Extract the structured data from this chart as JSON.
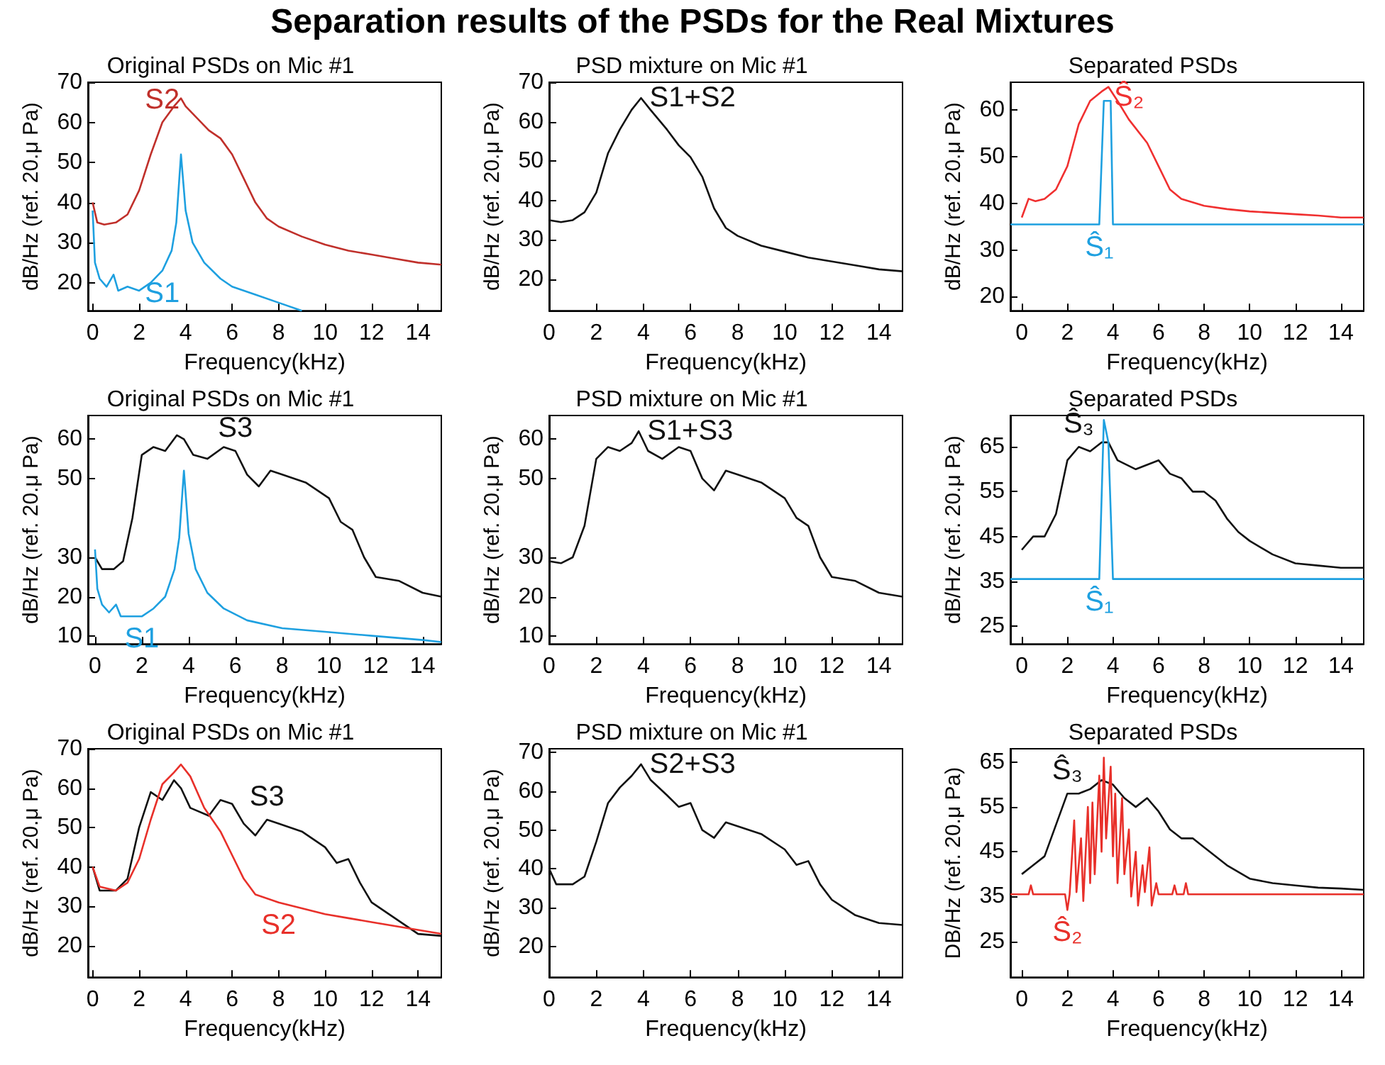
{
  "chart_data": [
    {
      "type": "line",
      "title": "Original PSDs on Mic #1",
      "xlabel": "Frequency(kHz)",
      "ylabel": "dB/Hz (ref. 20.μ Pa)",
      "annotations": [
        "Separation results of the PSDs for the Real Mixtures"
      ],
      "xlim": [
        -0.2,
        15
      ],
      "xticks": [
        0,
        2,
        4,
        6,
        8,
        10,
        12,
        14
      ],
      "ylim": [
        13,
        70
      ],
      "yticks": [
        20,
        30,
        40,
        50,
        60,
        70
      ],
      "series": [
        {
          "name": "S2",
          "color": "#c0302b",
          "x": [
            0,
            0.2,
            0.5,
            1,
            1.5,
            2,
            2.5,
            3,
            3.5,
            3.8,
            4,
            4.5,
            5,
            5.5,
            6,
            6.5,
            7,
            7.5,
            8,
            9,
            10,
            11,
            12,
            13,
            14,
            15
          ],
          "values": [
            40,
            35,
            34.5,
            35,
            37,
            43,
            52,
            60,
            64,
            66,
            64,
            61,
            58,
            56,
            52,
            46,
            40,
            36,
            34,
            31.5,
            29.5,
            28,
            27,
            26,
            25,
            24.5
          ]
        },
        {
          "name": "S1",
          "color": "#1ea0e0",
          "x": [
            0,
            0.1,
            0.3,
            0.6,
            0.9,
            1.1,
            1.5,
            2,
            2.5,
            3,
            3.4,
            3.6,
            3.8,
            4,
            4.3,
            4.8,
            5.5,
            6,
            7,
            8,
            9
          ],
          "values": [
            38,
            25,
            21,
            19,
            22,
            18,
            19,
            18,
            20,
            23,
            28,
            35,
            52,
            38,
            30,
            25,
            21,
            19,
            17,
            15,
            13
          ]
        }
      ]
    },
    {
      "type": "line",
      "title": "PSD mixture on Mic #1",
      "xlabel": "Frequency(kHz)",
      "ylabel": "dB/Hz (ref. 20.μ Pa)",
      "xlim": [
        0,
        15
      ],
      "xticks": [
        0,
        2,
        4,
        6,
        8,
        10,
        12,
        14
      ],
      "ylim": [
        12,
        70
      ],
      "yticks": [
        20,
        30,
        40,
        50,
        60,
        70
      ],
      "series": [
        {
          "name": "S1+S2",
          "color": "#111111",
          "x": [
            0,
            0.5,
            1,
            1.5,
            2,
            2.5,
            3,
            3.5,
            3.9,
            4.3,
            5,
            5.5,
            6,
            6.5,
            7,
            7.5,
            8,
            9,
            10,
            11,
            12,
            13,
            14,
            15
          ],
          "values": [
            35,
            34.5,
            35,
            37,
            42,
            52,
            58,
            63,
            66,
            63,
            58,
            54,
            51,
            46,
            38,
            33,
            31,
            28.5,
            27,
            25.5,
            24.5,
            23.5,
            22.5,
            22
          ]
        }
      ]
    },
    {
      "type": "line",
      "title": "Separated PSDs",
      "xlabel": "Frequency(kHz)",
      "ylabel": "dB/Hz (ref. 20.μ Pa)",
      "xlim": [
        -0.5,
        15
      ],
      "xticks": [
        0,
        2,
        4,
        6,
        8,
        10,
        12,
        14
      ],
      "ylim": [
        17,
        66
      ],
      "yticks": [
        20,
        30,
        40,
        50,
        60
      ],
      "series": [
        {
          "name": "Ŝ₂",
          "color": "#f03030",
          "x": [
            0,
            0.3,
            0.6,
            1,
            1.5,
            2,
            2.5,
            3,
            3.5,
            3.8,
            4.2,
            4.7,
            5.5,
            6,
            6.5,
            7,
            8,
            9,
            10,
            11,
            12,
            13,
            14,
            15
          ],
          "values": [
            37,
            41,
            40.5,
            41,
            43,
            48,
            57,
            62,
            64,
            65,
            62,
            58,
            53,
            48,
            43,
            41,
            39.5,
            38.8,
            38.3,
            38,
            37.7,
            37.4,
            37,
            37
          ]
        },
        {
          "name": "Ŝ₁",
          "color": "#1ea0e0",
          "x": [
            -0.5,
            3.4,
            3.6,
            3.9,
            4,
            15
          ],
          "values": [
            35.5,
            35.5,
            62,
            62,
            35.5,
            35.5
          ]
        }
      ]
    },
    {
      "type": "line",
      "title": "Original PSDs on Mic #1",
      "xlabel": "Frequency(kHz)",
      "ylabel": "dB/Hz (ref. 20.μ Pa)",
      "xlim": [
        -0.3,
        14.8
      ],
      "xticks": [
        0,
        2,
        4,
        6,
        8,
        10,
        12,
        14
      ],
      "ylim": [
        8,
        66
      ],
      "yticks": [
        10,
        20,
        30,
        50,
        60
      ],
      "series": [
        {
          "name": "S3",
          "color": "#111111",
          "x": [
            0,
            0.3,
            0.8,
            1.2,
            1.6,
            2,
            2.5,
            3,
            3.5,
            3.8,
            4.2,
            4.8,
            5.5,
            6,
            6.5,
            7,
            7.5,
            8,
            9,
            10,
            10.5,
            11,
            11.5,
            12,
            13,
            14,
            14.8
          ],
          "values": [
            30,
            27,
            27,
            29,
            40,
            56,
            58,
            57,
            61,
            60,
            56,
            55,
            58,
            57,
            51,
            48,
            52,
            51,
            49,
            45,
            39,
            37,
            30,
            25,
            24,
            21,
            20
          ]
        },
        {
          "name": "S1",
          "color": "#1ea0e0",
          "x": [
            0,
            0.1,
            0.3,
            0.6,
            0.9,
            1.1,
            1.5,
            2,
            2.5,
            3,
            3.4,
            3.6,
            3.8,
            4,
            4.3,
            4.8,
            5.5,
            6.5,
            8,
            10,
            12,
            14,
            14.8
          ],
          "values": [
            32,
            22,
            18,
            16,
            18,
            15,
            15,
            15,
            17,
            20,
            27,
            35,
            52,
            36,
            27,
            21,
            17,
            14,
            12,
            11,
            10,
            9,
            8.5
          ]
        }
      ]
    },
    {
      "type": "line",
      "title": "PSD mixture on Mic #1",
      "xlabel": "Frequency(kHz)",
      "ylabel": "dB/Hz (ref. 20.μ Pa)",
      "xlim": [
        0,
        15
      ],
      "xticks": [
        0,
        2,
        4,
        6,
        8,
        10,
        12,
        14
      ],
      "ylim": [
        8,
        66
      ],
      "yticks": [
        10,
        20,
        30,
        50,
        60
      ],
      "series": [
        {
          "name": "S1+S3",
          "color": "#111111",
          "x": [
            0,
            0.5,
            1,
            1.5,
            2,
            2.5,
            3,
            3.5,
            3.8,
            4.2,
            4.8,
            5.5,
            6,
            6.5,
            7,
            7.5,
            8,
            9,
            10,
            10.5,
            11,
            11.5,
            12,
            13,
            14,
            15
          ],
          "values": [
            29,
            28.5,
            30,
            38,
            55,
            58,
            57,
            59,
            62,
            57,
            55,
            58,
            57,
            50,
            47,
            52,
            51,
            49,
            45,
            40,
            38,
            30,
            25,
            24,
            21,
            20
          ]
        }
      ]
    },
    {
      "type": "line",
      "title": "Separated PSDs",
      "xlabel": "Frequency(kHz)",
      "ylabel": "dB/Hz (ref. 20.μ Pa)",
      "xlim": [
        -0.5,
        15
      ],
      "xticks": [
        0,
        2,
        4,
        6,
        8,
        10,
        12,
        14
      ],
      "ylim": [
        21,
        72
      ],
      "yticks": [
        25,
        35,
        45,
        55,
        65
      ],
      "series": [
        {
          "name": "Ŝ₃",
          "color": "#111111",
          "x": [
            0,
            0.5,
            1,
            1.5,
            2,
            2.5,
            3,
            3.5,
            3.8,
            4.2,
            5,
            5.5,
            6,
            6.5,
            7,
            7.5,
            8,
            8.5,
            9,
            9.5,
            10,
            11,
            12,
            13,
            14,
            15
          ],
          "values": [
            42,
            45,
            45,
            50,
            62,
            65,
            64,
            66,
            66,
            62,
            60,
            61,
            62,
            59,
            58,
            55,
            55,
            53,
            49,
            46,
            44,
            41,
            39,
            38.5,
            38,
            38
          ]
        },
        {
          "name": "Ŝ₁",
          "color": "#1ea0e0",
          "x": [
            -0.5,
            3.4,
            3.6,
            3.8,
            4,
            15
          ],
          "values": [
            35.5,
            35.5,
            71,
            66,
            35.5,
            35.5
          ]
        }
      ]
    },
    {
      "type": "line",
      "title": "Original PSDs on Mic #1",
      "xlabel": "Frequency(kHz)",
      "ylabel": "dB/Hz (ref. 20.μ Pa)",
      "xlim": [
        -0.2,
        15
      ],
      "xticks": [
        0,
        2,
        4,
        6,
        8,
        10,
        12,
        14
      ],
      "ylim": [
        12,
        70
      ],
      "yticks": [
        20,
        30,
        40,
        50,
        60,
        70
      ],
      "series": [
        {
          "name": "S3",
          "color": "#111111",
          "x": [
            0,
            0.3,
            1,
            1.5,
            2,
            2.5,
            3,
            3.5,
            3.8,
            4.2,
            5,
            5.5,
            6,
            6.5,
            7,
            7.5,
            8,
            9,
            10,
            10.5,
            11,
            11.5,
            12,
            13,
            14,
            15
          ],
          "values": [
            40,
            34,
            34,
            37,
            50,
            59,
            57,
            62,
            60,
            55,
            53,
            57,
            56,
            51,
            48,
            52,
            51,
            49,
            45,
            41,
            42,
            36,
            31,
            27,
            23,
            22.5
          ]
        },
        {
          "name": "S2",
          "color": "#e8302a",
          "x": [
            0,
            0.3,
            1,
            1.5,
            2,
            2.5,
            3,
            3.5,
            3.8,
            4.2,
            4.8,
            5.5,
            6,
            6.5,
            7,
            8,
            9,
            10,
            11,
            12,
            13,
            14,
            15
          ],
          "values": [
            40,
            35,
            34,
            36,
            42,
            52,
            61,
            64,
            66,
            63,
            55,
            49,
            43,
            37,
            33,
            31,
            29.5,
            28,
            27,
            26,
            25,
            24,
            23
          ]
        }
      ]
    },
    {
      "type": "line",
      "title": "PSD mixture on Mic #1",
      "xlabel": "Frequency(kHz)",
      "ylabel": "dB/Hz (ref. 20.μ Pa)",
      "xlim": [
        0,
        15
      ],
      "xticks": [
        0,
        2,
        4,
        6,
        8,
        10,
        12,
        14
      ],
      "ylim": [
        12,
        71
      ],
      "yticks": [
        20,
        30,
        40,
        50,
        60,
        70
      ],
      "series": [
        {
          "name": "S2+S3",
          "color": "#111111",
          "x": [
            0,
            0.3,
            1,
            1.5,
            2,
            2.5,
            3,
            3.5,
            3.9,
            4.3,
            5,
            5.5,
            6,
            6.5,
            7,
            7.5,
            8,
            9,
            10,
            10.5,
            11,
            11.5,
            12,
            13,
            14,
            15
          ],
          "values": [
            40,
            36,
            36,
            38,
            47,
            57,
            61,
            64,
            67,
            63,
            59,
            56,
            57,
            50,
            48,
            52,
            51,
            49,
            45,
            41,
            42,
            36,
            32,
            28,
            26,
            25.5
          ]
        }
      ]
    },
    {
      "type": "line",
      "title": "Separated PSDs",
      "xlabel": "Frequency(kHz)",
      "ylabel": "DB/Hz (ref. 20.μ Pa)",
      "xlim": [
        -0.5,
        15
      ],
      "xticks": [
        0,
        2,
        4,
        6,
        8,
        10,
        12,
        14
      ],
      "ylim": [
        17,
        68
      ],
      "yticks": [
        25,
        35,
        45,
        55,
        65
      ],
      "series": [
        {
          "name": "Ŝ₃",
          "color": "#111111",
          "x": [
            0,
            0.5,
            1,
            1.5,
            2,
            2.5,
            3,
            3.5,
            4,
            4.5,
            5,
            5.5,
            6,
            6.5,
            7,
            7.5,
            8,
            9,
            10,
            11,
            12,
            13,
            14,
            15
          ],
          "values": [
            40,
            42,
            44,
            51,
            58,
            58,
            59,
            61,
            60,
            57,
            55,
            57,
            54,
            50,
            48,
            48,
            46,
            42,
            39,
            38,
            37.5,
            37,
            36.8,
            36.5
          ]
        },
        {
          "name": "Ŝ₂",
          "color": "#e8302a",
          "x": [
            -0.5,
            0.3,
            0.4,
            0.5,
            1.9,
            2,
            2.1,
            2.3,
            2.4,
            2.6,
            2.7,
            2.9,
            3,
            3.1,
            3.2,
            3.4,
            3.5,
            3.6,
            3.7,
            3.9,
            4,
            4.1,
            4.2,
            4.4,
            4.5,
            4.7,
            4.8,
            5,
            5.1,
            5.3,
            5.4,
            5.6,
            5.7,
            5.9,
            6,
            6.6,
            6.7,
            6.8,
            7.1,
            7.2,
            7.3,
            15
          ],
          "values": [
            35.5,
            35.5,
            37.5,
            35.5,
            35.5,
            32,
            35.5,
            52,
            36,
            48,
            34,
            55,
            38,
            56,
            40,
            62,
            45,
            66,
            48,
            64,
            44,
            58,
            38,
            57,
            40,
            50,
            35,
            45,
            33,
            42,
            36,
            46,
            33,
            38,
            35.5,
            35.5,
            37.5,
            35.5,
            35.5,
            38,
            35.5,
            35.5
          ]
        }
      ]
    }
  ]
}
